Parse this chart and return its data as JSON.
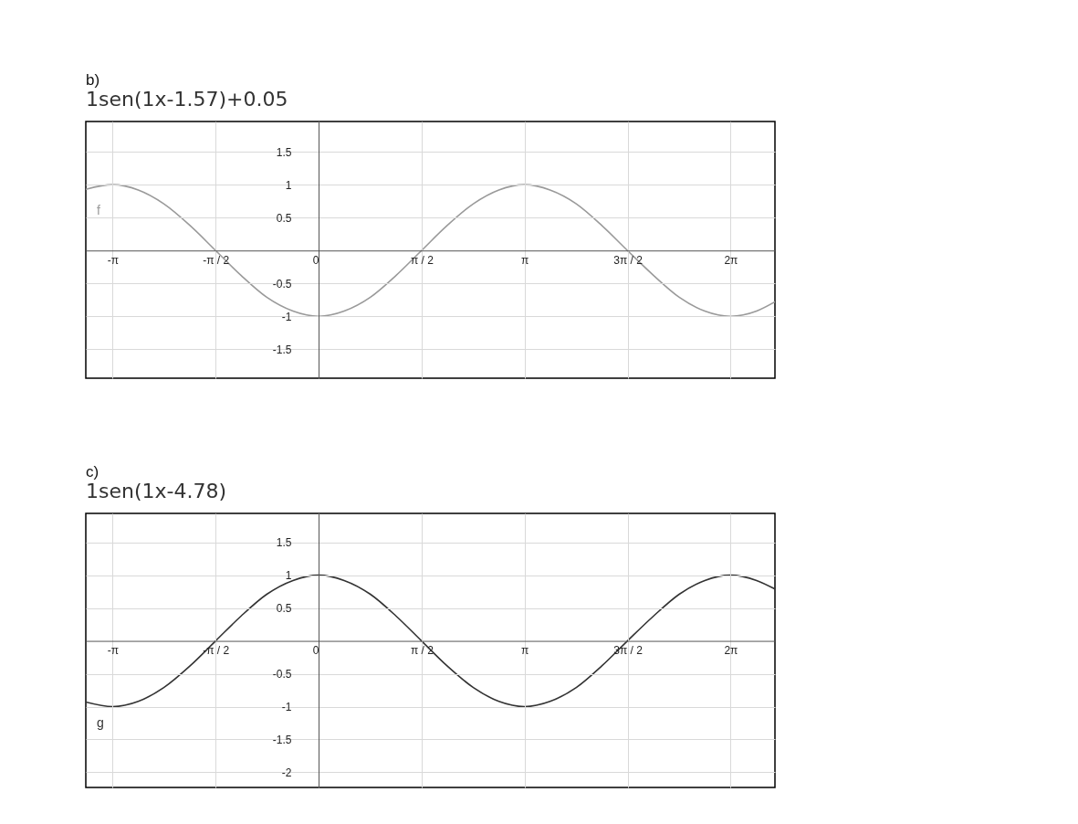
{
  "chart_data": [
    {
      "type": "line",
      "title": "b)",
      "subtitle": "1sen(1x-1.57)+0.05",
      "grid": true,
      "line_style": "solid",
      "xlim": [
        -3.55,
        6.96
      ],
      "ylim": [
        -1.94,
        1.96
      ],
      "xticks": [
        {
          "value": -3.1416,
          "label": "-π"
        },
        {
          "value": -1.5708,
          "label": "-π / 2"
        },
        0,
        {
          "value": 1.5708,
          "label": "π / 2"
        },
        {
          "value": 3.1416,
          "label": "π"
        },
        {
          "value": 4.7124,
          "label": "3π / 2"
        },
        {
          "value": 6.2832,
          "label": "2π"
        }
      ],
      "yticks": [
        1.5,
        1,
        0.5,
        -0.5,
        -1,
        -1.5
      ],
      "x": [
        -3.55,
        -3.14,
        -2.75,
        -2.36,
        -1.96,
        -1.57,
        -1.18,
        -0.79,
        -0.39,
        0,
        0.39,
        0.79,
        1.18,
        1.57,
        1.96,
        2.36,
        2.75,
        3.14,
        3.53,
        3.93,
        4.32,
        4.71,
        5.11,
        5.5,
        5.89,
        6.28,
        6.68,
        6.96
      ],
      "series": [
        {
          "name": "f",
          "color": "#9a9a9a",
          "values": [
            0.93,
            1,
            0.92,
            0.71,
            0.38,
            0,
            -0.38,
            -0.71,
            -0.92,
            -1,
            -0.92,
            -0.71,
            -0.38,
            0,
            0.38,
            0.71,
            0.92,
            1,
            0.92,
            0.71,
            0.38,
            0,
            -0.38,
            -0.71,
            -0.92,
            -1,
            -0.92,
            -0.78
          ]
        }
      ]
    },
    {
      "type": "line",
      "title": "c)",
      "subtitle": "1sen(1x-4.78)",
      "grid": true,
      "line_style": "solid",
      "xlim": [
        -3.55,
        6.96
      ],
      "ylim": [
        -2.23,
        1.94
      ],
      "xticks": [
        {
          "value": -3.1416,
          "label": "-π"
        },
        {
          "value": -1.5708,
          "label": "-π / 2"
        },
        0,
        {
          "value": 1.5708,
          "label": "π / 2"
        },
        {
          "value": 3.1416,
          "label": "π"
        },
        {
          "value": 4.7124,
          "label": "3π / 2"
        },
        {
          "value": 6.2832,
          "label": "2π"
        }
      ],
      "yticks": [
        1.5,
        1,
        0.5,
        -0.5,
        -1,
        -1.5,
        -2
      ],
      "x": [
        -3.55,
        -3.14,
        -2.75,
        -2.36,
        -1.96,
        -1.57,
        -1.18,
        -0.79,
        -0.39,
        0,
        0.39,
        0.79,
        1.18,
        1.57,
        1.96,
        2.36,
        2.75,
        3.14,
        3.53,
        3.93,
        4.32,
        4.71,
        5.11,
        5.5,
        5.89,
        6.28,
        6.68,
        6.96
      ],
      "series": [
        {
          "name": "g",
          "color": "#333333",
          "values": [
            -0.93,
            -1,
            -0.92,
            -0.71,
            -0.38,
            0,
            0.38,
            0.71,
            0.92,
            1,
            0.92,
            0.71,
            0.38,
            0,
            -0.38,
            -0.71,
            -0.92,
            -1,
            -0.92,
            -0.71,
            -0.38,
            0,
            0.38,
            0.71,
            0.92,
            1,
            0.92,
            0.79
          ]
        }
      ]
    }
  ]
}
